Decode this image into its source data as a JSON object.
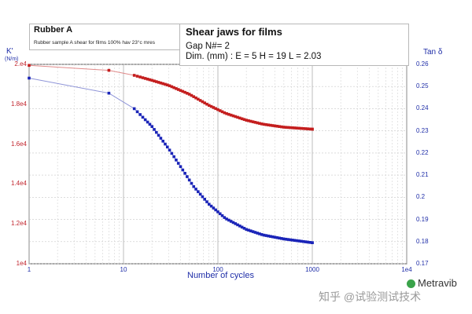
{
  "header": {
    "sample_name": "Rubber A",
    "sample_desc": "Rubber sample A shear for films 100% hav 23°c mres",
    "title": "Shear jaws for films",
    "gap": "Gap N#= 2",
    "dims": "Dim. (mm)   : E = 5   H = 19   L = 2.03"
  },
  "watermark": "知乎 @试验测试技术",
  "logo": "Metravib",
  "colors": {
    "red_series": "#c41e1e",
    "blue_series": "#1a24b8",
    "axis_text": "#1f2ea8",
    "left_tick_text": "#c2262e"
  },
  "chart_data": {
    "type": "line",
    "xlabel": "Number of cycles",
    "x_scale": "log",
    "xlim": [
      1,
      10000
    ],
    "x_ticks": [
      "1",
      "10",
      "100",
      "1000",
      "1e4"
    ],
    "y_left": {
      "label": "K'",
      "unit": "(N/m)",
      "ylim": [
        10000,
        20000
      ],
      "ticks": [
        "1e4",
        "1.2e4",
        "1.4e4",
        "1.6e4",
        "1.8e4",
        "2.e4"
      ]
    },
    "y_right": {
      "label": "Tan δ",
      "ylim": [
        0.17,
        0.26
      ],
      "ticks": [
        "0.17",
        "0.18",
        "0.19",
        "0.2",
        "0.21",
        "0.22",
        "0.23",
        "0.24",
        "0.25",
        "0.26"
      ]
    },
    "grid": true,
    "series": [
      {
        "axis": "left",
        "color": "#c41e1e",
        "points": [
          [
            1,
            19950
          ],
          [
            7,
            19700
          ],
          [
            13,
            19450
          ],
          [
            20,
            19200
          ],
          [
            30,
            18950
          ],
          [
            50,
            18500
          ],
          [
            80,
            17950
          ],
          [
            120,
            17550
          ],
          [
            200,
            17200
          ],
          [
            300,
            17000
          ],
          [
            500,
            16850
          ],
          [
            1000,
            16750
          ]
        ]
      },
      {
        "axis": "right",
        "color": "#1a24b8",
        "points": [
          [
            1,
            0.2538
          ],
          [
            7,
            0.247
          ],
          [
            13,
            0.24
          ],
          [
            20,
            0.232
          ],
          [
            30,
            0.222
          ],
          [
            40,
            0.214
          ],
          [
            55,
            0.205
          ],
          [
            80,
            0.197
          ],
          [
            120,
            0.1905
          ],
          [
            200,
            0.1855
          ],
          [
            300,
            0.183
          ],
          [
            500,
            0.1812
          ],
          [
            1000,
            0.1795
          ]
        ]
      }
    ]
  }
}
